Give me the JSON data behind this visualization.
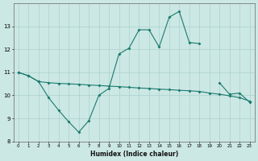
{
  "xlabel": "Humidex (Indice chaleur)",
  "x": [
    0,
    1,
    2,
    3,
    4,
    5,
    6,
    7,
    8,
    9,
    10,
    11,
    12,
    13,
    14,
    15,
    16,
    17,
    18,
    19,
    20,
    21,
    22,
    23
  ],
  "line_main": [
    11.0,
    10.85,
    10.6,
    9.9,
    9.35,
    8.85,
    8.4,
    8.9,
    10.0,
    10.3,
    11.8,
    12.05,
    12.85,
    12.85,
    12.1,
    13.4,
    13.65,
    12.3,
    12.25,
    null,
    null,
    null,
    null,
    null
  ],
  "line_flat": [
    11.0,
    10.85,
    10.6,
    10.55,
    10.52,
    10.5,
    10.48,
    10.45,
    10.43,
    10.4,
    10.38,
    10.35,
    10.32,
    10.3,
    10.27,
    10.25,
    10.22,
    10.2,
    10.17,
    10.1,
    10.05,
    9.98,
    9.9,
    9.75
  ],
  "line_right": [
    null,
    null,
    null,
    null,
    null,
    null,
    null,
    null,
    null,
    null,
    null,
    null,
    null,
    null,
    null,
    null,
    null,
    null,
    null,
    null,
    10.55,
    10.05,
    10.1,
    9.7
  ],
  "bg_color": "#cce8e4",
  "grid_color": "#aad0cc",
  "line_color": "#1a7a6e",
  "ylim": [
    8.0,
    14.0
  ],
  "yticks": [
    8,
    9,
    10,
    11,
    12,
    13
  ],
  "xlim": [
    -0.5,
    23.5
  ],
  "xtick_labels": [
    "0",
    "1",
    "2",
    "3",
    "4",
    "5",
    "6",
    "7",
    "8",
    "9",
    "10",
    "11",
    "12",
    "13",
    "14",
    "15",
    "16",
    "17",
    "18",
    "19",
    "20",
    "21",
    "22",
    "23"
  ]
}
